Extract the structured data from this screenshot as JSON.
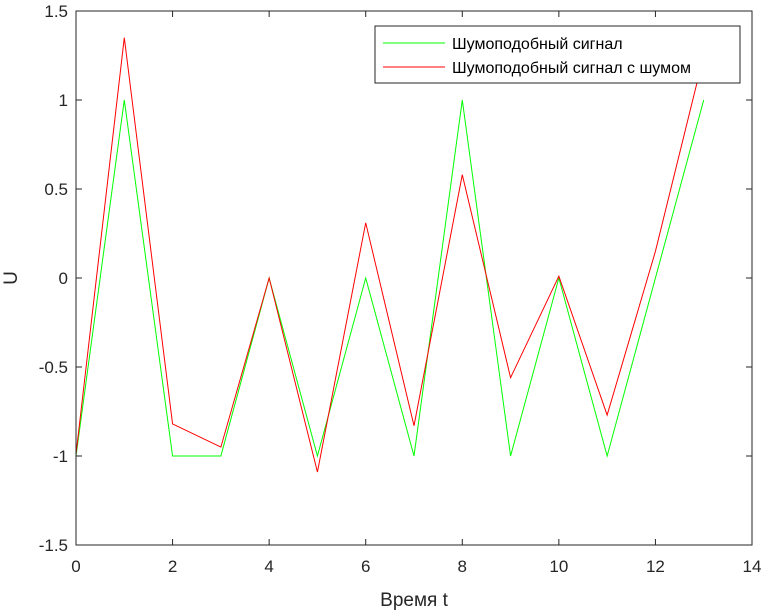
{
  "chart_data": {
    "type": "line",
    "xlabel": "Время t",
    "ylabel": "U",
    "xlim": [
      0,
      14
    ],
    "ylim": [
      -1.5,
      1.5
    ],
    "xticks": [
      "0",
      "2",
      "4",
      "6",
      "8",
      "10",
      "12",
      "14"
    ],
    "yticks": [
      "-1.5",
      "-1",
      "-0.5",
      "0",
      "0.5",
      "1",
      "1.5"
    ],
    "grid": false,
    "legend_position": "top-right",
    "series": [
      {
        "name": "Шумоподобный сигнал",
        "color": "#00ff00",
        "x": [
          0,
          1,
          2,
          3,
          4,
          5,
          6,
          7,
          8,
          9,
          10,
          11,
          12,
          13
        ],
        "y": [
          -1,
          1,
          -1,
          -1,
          0,
          -1,
          0,
          -1,
          1,
          -1,
          0,
          -1,
          0,
          1
        ]
      },
      {
        "name": "Шумоподобный сигнал с шумом",
        "color": "#ff0000",
        "x": [
          0,
          1,
          2,
          3,
          4,
          5,
          6,
          7,
          8,
          9,
          10,
          11,
          12,
          13
        ],
        "y": [
          -0.99,
          1.35,
          -0.82,
          -0.95,
          0,
          -1.09,
          0.31,
          -0.83,
          0.58,
          -0.56,
          0.01,
          -0.77,
          0.15,
          1.25
        ]
      }
    ]
  }
}
